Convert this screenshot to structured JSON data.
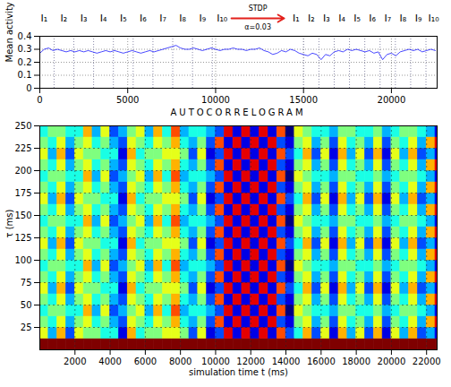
{
  "chart_data": [
    {
      "type": "line",
      "y_label": "Mean activity",
      "color": "#1a1aff",
      "xlim": [
        0,
        22600
      ],
      "xticks": [
        0,
        5000,
        10000,
        15000,
        20000
      ],
      "ylim": [
        0,
        0.4
      ],
      "yticks": [
        0,
        0.1,
        0.2,
        0.3,
        0.4
      ],
      "grid": true,
      "x": [
        0,
        250,
        500,
        750,
        1000,
        1250,
        1500,
        1750,
        2000,
        2250,
        2500,
        2750,
        3000,
        3250,
        3500,
        3750,
        4000,
        4250,
        4500,
        4750,
        5000,
        5250,
        5500,
        5750,
        6000,
        6250,
        6500,
        6750,
        7000,
        7250,
        7500,
        7750,
        8000,
        8250,
        8500,
        8750,
        9000,
        9250,
        9500,
        9750,
        10000,
        10250,
        10500,
        10750,
        11000,
        11250,
        11500,
        11750,
        12000,
        12250,
        12500,
        12750,
        13000,
        13250,
        13500,
        13750,
        14000,
        14250,
        14500,
        14750,
        15000,
        15250,
        15500,
        15750,
        16000,
        16250,
        16500,
        16750,
        17000,
        17250,
        17500,
        17750,
        18000,
        18250,
        18500,
        18750,
        19000,
        19250,
        19500,
        19750,
        20000,
        20250,
        20500,
        20750,
        21000,
        21250,
        21500,
        21750,
        22000,
        22250,
        22500
      ],
      "values": [
        0.27,
        0.3,
        0.31,
        0.29,
        0.3,
        0.29,
        0.28,
        0.29,
        0.28,
        0.29,
        0.28,
        0.29,
        0.28,
        0.27,
        0.28,
        0.29,
        0.28,
        0.29,
        0.28,
        0.27,
        0.28,
        0.29,
        0.28,
        0.27,
        0.28,
        0.29,
        0.28,
        0.29,
        0.3,
        0.31,
        0.32,
        0.33,
        0.31,
        0.3,
        0.3,
        0.31,
        0.3,
        0.29,
        0.3,
        0.31,
        0.3,
        0.29,
        0.3,
        0.3,
        0.31,
        0.3,
        0.3,
        0.29,
        0.3,
        0.3,
        0.31,
        0.29,
        0.28,
        0.26,
        0.27,
        0.29,
        0.28,
        0.3,
        0.29,
        0.27,
        0.26,
        0.25,
        0.27,
        0.26,
        0.22,
        0.26,
        0.25,
        0.28,
        0.29,
        0.28,
        0.3,
        0.29,
        0.3,
        0.29,
        0.28,
        0.29,
        0.27,
        0.28,
        0.22,
        0.26,
        0.27,
        0.25,
        0.28,
        0.29,
        0.3,
        0.29,
        0.3,
        0.28,
        0.29,
        0.3,
        0.29
      ],
      "input_boundaries": [
        810,
        1935,
        3060,
        4185,
        5310,
        6435,
        7560,
        8685,
        9810,
        15005,
        15875,
        16745,
        17615,
        18485,
        19355,
        20225,
        21095,
        21965
      ],
      "annotations": [
        {
          "text": "I₁",
          "x": 250
        },
        {
          "text": "I₂",
          "x": 1370
        },
        {
          "text": "I₃",
          "x": 2500
        },
        {
          "text": "I₄",
          "x": 3620
        },
        {
          "text": "I₅",
          "x": 4750
        },
        {
          "text": "I₆",
          "x": 5870
        },
        {
          "text": "I₇",
          "x": 7000
        },
        {
          "text": "I₈",
          "x": 8120
        },
        {
          "text": "I₉",
          "x": 9250
        },
        {
          "text": "I₁₀",
          "x": 10370
        },
        {
          "text": "I₁",
          "x": 14570
        },
        {
          "text": "I₂",
          "x": 15440
        },
        {
          "text": "I₃",
          "x": 16310
        },
        {
          "text": "I₄",
          "x": 17180
        },
        {
          "text": "I₅",
          "x": 18050
        },
        {
          "text": "I₆",
          "x": 18920
        },
        {
          "text": "I₇",
          "x": 19790
        },
        {
          "text": "I₈",
          "x": 20660
        },
        {
          "text": "I₉",
          "x": 21530
        },
        {
          "text": "I₁₀",
          "x": 22400
        }
      ],
      "stdp": {
        "label": "STDP",
        "parameter": "α=0.03",
        "x": [
          10900,
          13900
        ],
        "color": "#e3201b"
      }
    },
    {
      "type": "heatmap",
      "title": "AUTOCORRELOGRAM",
      "x_label": "simulation time t (ms)",
      "y_label": "τ (ms)",
      "color": "jet",
      "zlim": [
        0,
        10
      ],
      "xlim": [
        0,
        22600
      ],
      "xticks": [
        2000,
        4000,
        6000,
        8000,
        10000,
        12000,
        14000,
        16000,
        18000,
        20000,
        22000
      ],
      "ylim": [
        0,
        250
      ],
      "yticks": [
        25,
        50,
        75,
        100,
        125,
        150,
        175,
        200,
        225,
        250
      ],
      "grid": true,
      "x_bins": [
        0,
        500,
        1000,
        1500,
        2000,
        2500,
        3000,
        3500,
        4000,
        4500,
        5000,
        5500,
        6000,
        6500,
        7000,
        7500,
        8000,
        8500,
        9000,
        9500,
        10000,
        10500,
        11000,
        11500,
        12000,
        12500,
        13000,
        13500,
        14000,
        14500,
        15000,
        15500,
        16000,
        16500,
        17000,
        17500,
        18000,
        18500,
        19000,
        19500,
        20000,
        20500,
        21000,
        21500,
        22000,
        22500,
        23000
      ],
      "y_bins": [
        0,
        12.5,
        25,
        37.5,
        50,
        62.5,
        75,
        87.5,
        100,
        112.5,
        125,
        137.5,
        150,
        162.5,
        175,
        187.5,
        200,
        212.5,
        225,
        237.5,
        250
      ],
      "z": [
        [
          10,
          10,
          10,
          10,
          10,
          10,
          10,
          10,
          10,
          10,
          10,
          10,
          10,
          10,
          10,
          10,
          10,
          10,
          10,
          10,
          10,
          10,
          10,
          10,
          10,
          10,
          10,
          10,
          10,
          10,
          10,
          10,
          10,
          10,
          10,
          10,
          10,
          10,
          10,
          10,
          10,
          10,
          10,
          10,
          10,
          10
        ],
        [
          6,
          3,
          7,
          2,
          6,
          5,
          5,
          4,
          4,
          1,
          7,
          4,
          5,
          5,
          6,
          6,
          5,
          2,
          6,
          1,
          2,
          9,
          1,
          9,
          1,
          9,
          1,
          8,
          2,
          4,
          7,
          2,
          6,
          1,
          7,
          3,
          6,
          2,
          7,
          1,
          6,
          3,
          7,
          2,
          3,
          1
        ],
        [
          5,
          4,
          6,
          3,
          5,
          6,
          4,
          5,
          3,
          2,
          6,
          5,
          4,
          6,
          5,
          7,
          4,
          3,
          5,
          2,
          8,
          1,
          9,
          1,
          9,
          1,
          9,
          2,
          1,
          5,
          6,
          3,
          5,
          2,
          6,
          4,
          5,
          3,
          6,
          2,
          5,
          4,
          6,
          3,
          7,
          9
        ],
        [
          4,
          5,
          5,
          4,
          4,
          7,
          3,
          6,
          2,
          3,
          5,
          6,
          3,
          7,
          4,
          8,
          3,
          4,
          4,
          3,
          2,
          9,
          1,
          9,
          1,
          9,
          1,
          8,
          0,
          6,
          5,
          4,
          4,
          3,
          5,
          5,
          4,
          4,
          5,
          3,
          4,
          5,
          5,
          4,
          3,
          1
        ],
        [
          5,
          4,
          6,
          3,
          5,
          6,
          4,
          5,
          3,
          2,
          6,
          5,
          4,
          6,
          5,
          7,
          4,
          3,
          5,
          2,
          8,
          1,
          9,
          1,
          9,
          1,
          9,
          2,
          1,
          5,
          6,
          3,
          5,
          2,
          6,
          4,
          5,
          3,
          6,
          2,
          5,
          4,
          6,
          3,
          7,
          9
        ],
        [
          6,
          3,
          7,
          2,
          6,
          5,
          5,
          4,
          4,
          1,
          7,
          4,
          5,
          5,
          6,
          6,
          5,
          2,
          6,
          1,
          2,
          9,
          1,
          9,
          1,
          9,
          1,
          8,
          2,
          4,
          7,
          2,
          6,
          1,
          7,
          3,
          6,
          2,
          7,
          1,
          6,
          3,
          7,
          2,
          3,
          1
        ],
        [
          5,
          4,
          6,
          3,
          5,
          6,
          4,
          5,
          3,
          2,
          6,
          5,
          4,
          6,
          5,
          7,
          4,
          3,
          5,
          2,
          8,
          1,
          9,
          1,
          9,
          1,
          9,
          2,
          1,
          5,
          6,
          3,
          5,
          2,
          6,
          4,
          5,
          3,
          6,
          2,
          5,
          4,
          6,
          3,
          7,
          9
        ],
        [
          4,
          5,
          5,
          4,
          4,
          7,
          3,
          6,
          2,
          3,
          5,
          6,
          3,
          7,
          4,
          8,
          3,
          4,
          4,
          3,
          2,
          9,
          1,
          9,
          1,
          9,
          1,
          8,
          0,
          6,
          5,
          4,
          4,
          3,
          5,
          5,
          4,
          4,
          5,
          3,
          4,
          5,
          5,
          4,
          3,
          1
        ],
        [
          5,
          4,
          6,
          3,
          5,
          6,
          4,
          5,
          3,
          2,
          6,
          5,
          4,
          6,
          5,
          7,
          4,
          3,
          5,
          2,
          8,
          1,
          9,
          1,
          9,
          1,
          9,
          2,
          1,
          5,
          6,
          3,
          5,
          2,
          6,
          4,
          5,
          3,
          6,
          2,
          5,
          4,
          6,
          3,
          7,
          9
        ],
        [
          6,
          3,
          7,
          2,
          6,
          5,
          5,
          4,
          4,
          1,
          7,
          4,
          5,
          5,
          6,
          6,
          5,
          2,
          6,
          1,
          2,
          9,
          1,
          9,
          1,
          9,
          1,
          8,
          2,
          4,
          7,
          2,
          6,
          1,
          7,
          3,
          6,
          2,
          7,
          1,
          6,
          3,
          7,
          2,
          3,
          1
        ],
        [
          5,
          4,
          6,
          3,
          5,
          6,
          4,
          5,
          3,
          2,
          6,
          5,
          4,
          6,
          5,
          7,
          4,
          3,
          5,
          2,
          8,
          1,
          9,
          1,
          9,
          1,
          9,
          2,
          1,
          5,
          6,
          3,
          5,
          2,
          6,
          4,
          5,
          3,
          6,
          2,
          5,
          4,
          6,
          3,
          7,
          9
        ],
        [
          4,
          5,
          5,
          4,
          4,
          7,
          3,
          6,
          2,
          3,
          5,
          6,
          3,
          7,
          4,
          8,
          3,
          4,
          4,
          3,
          2,
          9,
          1,
          9,
          1,
          9,
          1,
          8,
          0,
          6,
          5,
          4,
          4,
          3,
          5,
          5,
          4,
          4,
          5,
          3,
          4,
          5,
          5,
          4,
          3,
          1
        ],
        [
          5,
          4,
          6,
          3,
          5,
          6,
          4,
          5,
          3,
          2,
          6,
          5,
          4,
          6,
          5,
          7,
          4,
          3,
          5,
          2,
          8,
          1,
          9,
          1,
          9,
          1,
          9,
          2,
          1,
          5,
          6,
          3,
          5,
          2,
          6,
          4,
          5,
          3,
          6,
          2,
          5,
          4,
          6,
          3,
          7,
          9
        ],
        [
          6,
          3,
          7,
          2,
          6,
          5,
          5,
          4,
          4,
          1,
          7,
          4,
          5,
          5,
          6,
          6,
          5,
          2,
          6,
          1,
          2,
          9,
          1,
          9,
          1,
          9,
          1,
          8,
          2,
          4,
          7,
          2,
          6,
          1,
          7,
          3,
          6,
          2,
          7,
          1,
          6,
          3,
          7,
          2,
          3,
          1
        ],
        [
          5,
          4,
          6,
          3,
          5,
          6,
          4,
          5,
          3,
          2,
          6,
          5,
          4,
          6,
          5,
          7,
          4,
          3,
          5,
          2,
          8,
          1,
          9,
          1,
          9,
          1,
          9,
          2,
          1,
          5,
          6,
          3,
          5,
          2,
          6,
          4,
          5,
          3,
          6,
          2,
          5,
          4,
          6,
          3,
          7,
          9
        ],
        [
          4,
          5,
          5,
          4,
          4,
          7,
          3,
          6,
          2,
          3,
          5,
          6,
          3,
          7,
          4,
          8,
          3,
          4,
          4,
          3,
          2,
          9,
          1,
          9,
          1,
          9,
          1,
          8,
          0,
          6,
          5,
          4,
          4,
          3,
          5,
          5,
          4,
          4,
          5,
          3,
          4,
          5,
          5,
          4,
          3,
          1
        ],
        [
          5,
          4,
          6,
          3,
          5,
          6,
          4,
          5,
          3,
          2,
          6,
          5,
          4,
          6,
          5,
          7,
          4,
          3,
          5,
          2,
          8,
          1,
          9,
          1,
          9,
          1,
          9,
          2,
          1,
          5,
          6,
          3,
          5,
          2,
          6,
          4,
          5,
          3,
          6,
          2,
          5,
          4,
          6,
          3,
          7,
          9
        ],
        [
          6,
          3,
          7,
          2,
          6,
          5,
          5,
          4,
          4,
          1,
          7,
          4,
          5,
          5,
          6,
          6,
          5,
          2,
          6,
          1,
          2,
          9,
          1,
          9,
          1,
          9,
          1,
          8,
          2,
          4,
          7,
          2,
          6,
          1,
          7,
          3,
          6,
          2,
          7,
          1,
          6,
          3,
          7,
          2,
          3,
          1
        ],
        [
          5,
          4,
          6,
          3,
          5,
          6,
          4,
          5,
          3,
          2,
          6,
          5,
          4,
          6,
          5,
          7,
          4,
          3,
          5,
          2,
          8,
          1,
          9,
          1,
          9,
          1,
          9,
          2,
          1,
          5,
          6,
          3,
          5,
          2,
          6,
          4,
          5,
          3,
          6,
          2,
          5,
          4,
          6,
          3,
          7,
          9
        ],
        [
          4,
          5,
          5,
          4,
          4,
          7,
          3,
          6,
          2,
          3,
          5,
          6,
          3,
          7,
          4,
          8,
          3,
          4,
          4,
          3,
          2,
          9,
          1,
          9,
          1,
          9,
          1,
          8,
          0,
          6,
          5,
          4,
          4,
          3,
          5,
          5,
          4,
          4,
          5,
          3,
          4,
          5,
          5,
          4,
          3,
          1
        ]
      ]
    }
  ]
}
